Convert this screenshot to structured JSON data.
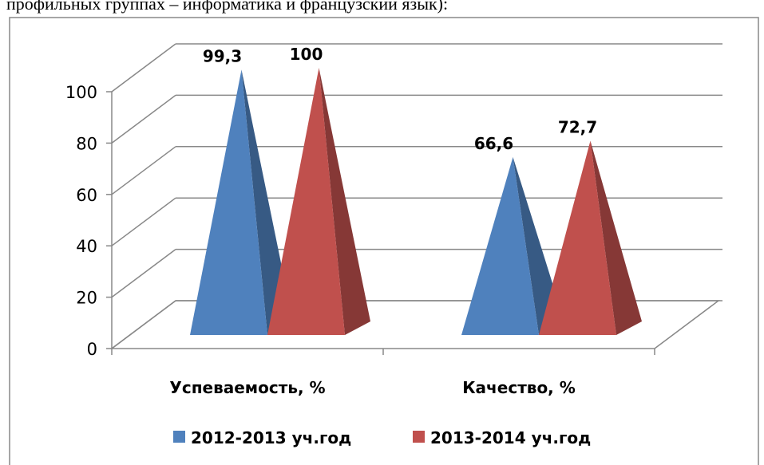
{
  "header_text": "профильных группах – информатика и французский язык):",
  "chart_data": {
    "type": "pyramid3d",
    "categories": [
      "Успеваемость, %",
      "Качество, %"
    ],
    "series": [
      {
        "name": "2012-2013 уч.год",
        "color": "#4f81bd",
        "values": [
          99.3,
          66.6
        ],
        "value_labels": [
          "99,3",
          "66,6"
        ]
      },
      {
        "name": "2013-2014 уч.год",
        "color": "#c0504d",
        "values": [
          100,
          72.7
        ],
        "value_labels": [
          "100",
          "72,7"
        ]
      }
    ],
    "ylim": [
      0,
      100
    ],
    "yticks": [
      0,
      20,
      40,
      60,
      80,
      100
    ],
    "grid": true,
    "legend": "bottom"
  }
}
